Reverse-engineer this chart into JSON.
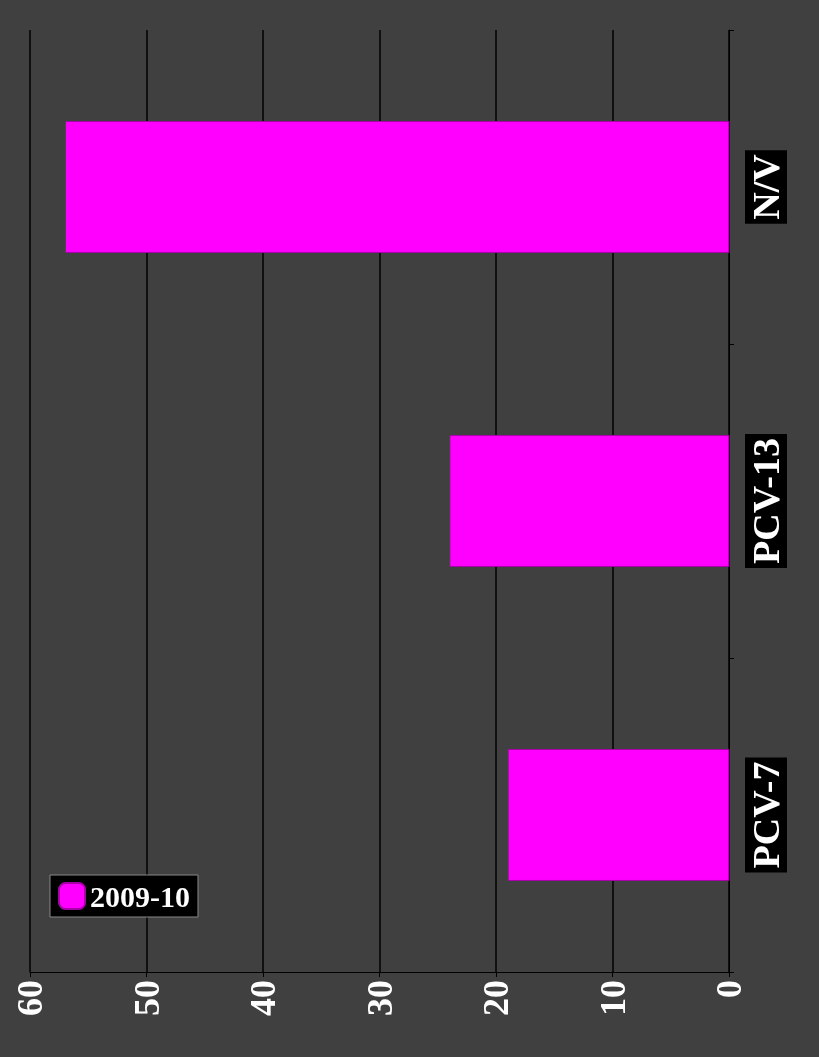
{
  "chart_data": {
    "type": "bar",
    "orientation": "horizontal",
    "categories": [
      "N/V",
      "PCV-13",
      "PCV-7"
    ],
    "series": [
      {
        "name": "2009-10",
        "color": "#ff00ff",
        "values": [
          57,
          24,
          19
        ]
      }
    ],
    "xlim": [
      60,
      0
    ],
    "xticks": [
      60,
      50,
      40,
      30,
      20,
      10,
      0
    ],
    "grid": "x",
    "legend": "bottom left"
  }
}
